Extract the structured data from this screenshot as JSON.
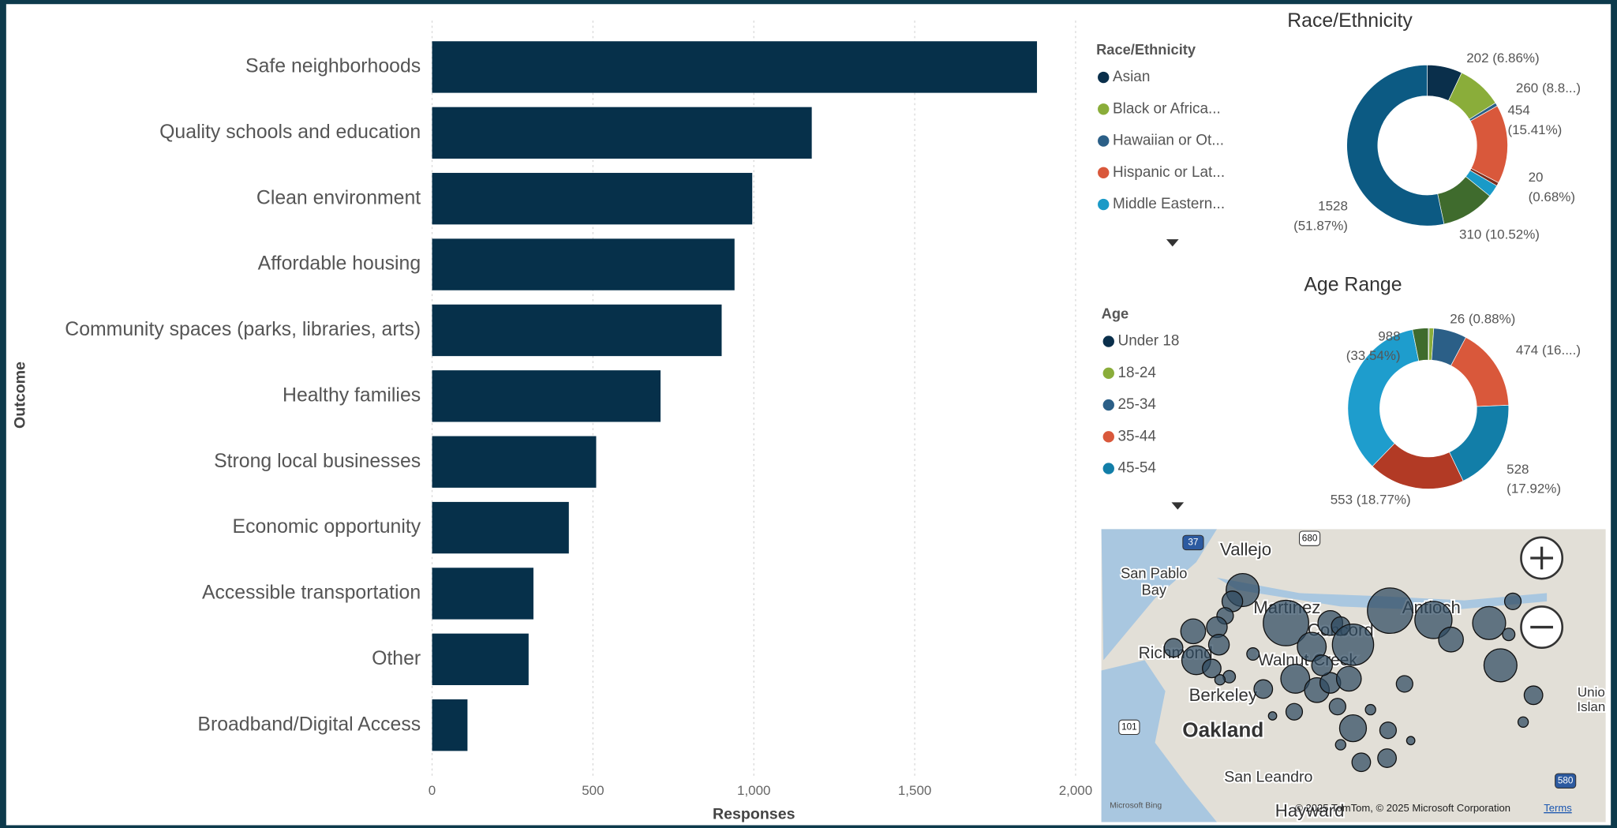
{
  "chart_data": [
    {
      "type": "bar",
      "orientation": "horizontal",
      "categories": [
        "Safe neighborhoods",
        "Quality schools and education",
        "Clean environment",
        "Affordable housing",
        "Community spaces (parks, libraries, arts)",
        "Healthy families",
        "Strong local businesses",
        "Economic opportunity",
        "Accessible transportation",
        "Other",
        "Broadband/Digital Access"
      ],
      "values": [
        1880,
        1180,
        995,
        940,
        900,
        710,
        510,
        425,
        315,
        300,
        110
      ],
      "color": "#06304a",
      "xlim": [
        0,
        2000
      ],
      "xticks": [
        0,
        500,
        {
          "value": 1000,
          "label": "1,000"
        },
        {
          "value": 1500,
          "label": "1,500"
        },
        {
          "value": 2000,
          "label": "2,000"
        }
      ],
      "x_label": "Responses",
      "y_label": "Outcome",
      "grid": true
    },
    {
      "type": "donut",
      "title": "Race/Ethnicity",
      "legend_title": "Race/Ethnicity",
      "categories": [
        "Asian",
        "Black or Africa...",
        "Hawaiian or Ot...",
        "Hispanic or Lat...",
        null,
        "Middle Eastern...",
        null,
        null
      ],
      "values": [
        202,
        260,
        20,
        454,
        20,
        70,
        310,
        1528
      ],
      "value_labels": [
        "202 (6.86%)",
        "260 (8.8...)",
        null,
        "454 (15.41%)",
        "20 (0.68%)",
        null,
        "310 (10.52%)",
        "1528 (51.87%)"
      ],
      "colors": [
        "#0a2f4b",
        "#8aad3a",
        "#2b5f87",
        "#d9583b",
        "#7a2e1e",
        "#1a9ac7",
        "#3f6b2d",
        "#0c5a83"
      ]
    },
    {
      "type": "donut",
      "title": "Age Range",
      "legend_title": "Age",
      "categories": [
        "Under 18",
        "18-24",
        "25-34",
        "35-44",
        "45-54",
        null,
        null,
        null
      ],
      "values": [
        5,
        26,
        190,
        474,
        528,
        553,
        988,
        90
      ],
      "value_labels": [
        null,
        "26 (0.88%)",
        null,
        "474 (16....)",
        "528 (17.92%)",
        "553 (18.77%)",
        "988 (33.54%)",
        null
      ],
      "colors": [
        "#0a2f4b",
        "#8aad3a",
        "#2b5f87",
        "#d9583b",
        "#127ea8",
        "#b23a25",
        "#1e9dcd",
        "#3f6b2d"
      ]
    }
  ],
  "map": {
    "labels": [
      "Vallejo",
      "San Pablo",
      "Bay",
      "Martinez",
      "Concord",
      "Antioch",
      "Richmond",
      "Walnut Creek",
      "Berkeley",
      "Oakland",
      "San Leandro",
      "Hayward",
      "Unio",
      "Islan"
    ],
    "shields": [
      "37",
      "101",
      "580",
      "680"
    ],
    "attribution": "© 2025 TomTom, © 2025 Microsoft Corporation",
    "terms": "Terms",
    "provider": "Microsoft Bing"
  }
}
